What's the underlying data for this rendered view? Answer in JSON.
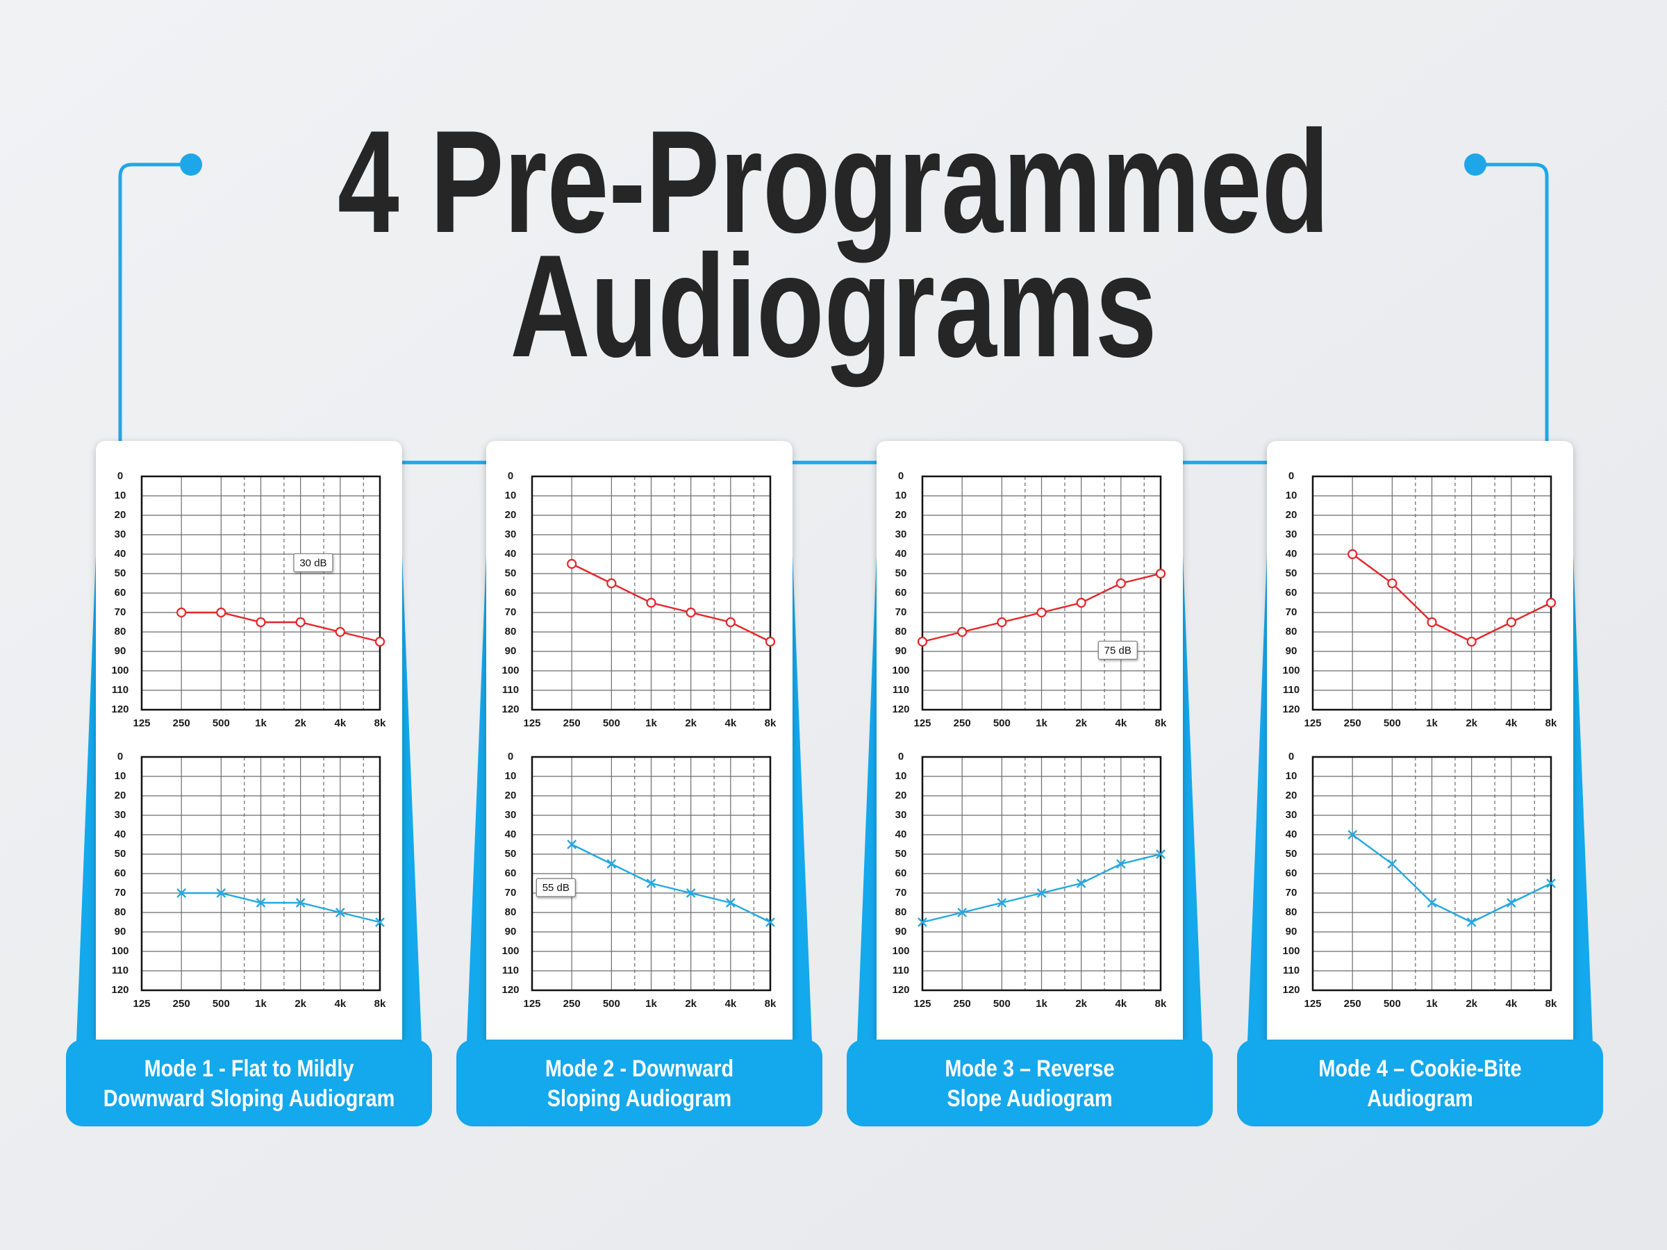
{
  "header": {
    "title_lines": [
      "4 Pre-Programmed",
      "Audiograms"
    ]
  },
  "panels": [
    {
      "caption_lines": [
        "Mode 1 - Flat to Mildly",
        "Downward Sloping Audiogram"
      ]
    },
    {
      "caption_lines": [
        "Mode 2 - Downward",
        "Sloping Audiogram"
      ]
    },
    {
      "caption_lines": [
        "Mode 3 – Reverse",
        "Slope Audiogram"
      ]
    },
    {
      "caption_lines": [
        "Mode 4 – Cookie-Bite",
        "Audiogram"
      ]
    }
  ],
  "chart_data": [
    {
      "type": "line",
      "categories": [
        "125",
        "250",
        "500",
        "1k",
        "2k",
        "4k",
        "8k"
      ],
      "values": [
        null,
        70,
        70,
        75,
        75,
        80,
        85
      ],
      "color": "#e5262b",
      "marker": "circle",
      "ylim": [
        0,
        120
      ],
      "yticks": [
        0,
        10,
        20,
        30,
        40,
        50,
        60,
        70,
        80,
        90,
        100,
        110,
        120
      ],
      "y_inverted": true,
      "grid": true,
      "annotation": "30 dB"
    },
    {
      "type": "line",
      "categories": [
        "125",
        "250",
        "500",
        "1k",
        "2k",
        "4k",
        "8k"
      ],
      "values": [
        null,
        70,
        70,
        75,
        75,
        80,
        85
      ],
      "color": "#24a9e1",
      "marker": "x",
      "ylim": [
        0,
        120
      ],
      "yticks": [
        0,
        10,
        20,
        30,
        40,
        50,
        60,
        70,
        80,
        90,
        100,
        110,
        120
      ],
      "y_inverted": true,
      "grid": true
    },
    {
      "type": "line",
      "categories": [
        "125",
        "250",
        "500",
        "1k",
        "2k",
        "4k",
        "8k"
      ],
      "values": [
        null,
        45,
        55,
        65,
        70,
        75,
        85
      ],
      "color": "#e5262b",
      "marker": "circle",
      "ylim": [
        0,
        120
      ],
      "yticks": [
        0,
        10,
        20,
        30,
        40,
        50,
        60,
        70,
        80,
        90,
        100,
        110,
        120
      ],
      "y_inverted": true,
      "grid": true
    },
    {
      "type": "line",
      "categories": [
        "125",
        "250",
        "500",
        "1k",
        "2k",
        "4k",
        "8k"
      ],
      "values": [
        null,
        45,
        55,
        65,
        70,
        75,
        85
      ],
      "color": "#24a9e1",
      "marker": "x",
      "ylim": [
        0,
        120
      ],
      "yticks": [
        0,
        10,
        20,
        30,
        40,
        50,
        60,
        70,
        80,
        90,
        100,
        110,
        120
      ],
      "y_inverted": true,
      "grid": true,
      "annotation": "55 dB"
    },
    {
      "type": "line",
      "categories": [
        "125",
        "250",
        "500",
        "1k",
        "2k",
        "4k",
        "8k"
      ],
      "values": [
        85,
        80,
        75,
        70,
        65,
        55,
        50
      ],
      "color": "#e5262b",
      "marker": "circle",
      "ylim": [
        0,
        120
      ],
      "yticks": [
        0,
        10,
        20,
        30,
        40,
        50,
        60,
        70,
        80,
        90,
        100,
        110,
        120
      ],
      "y_inverted": true,
      "grid": true,
      "annotation": "75 dB"
    },
    {
      "type": "line",
      "categories": [
        "125",
        "250",
        "500",
        "1k",
        "2k",
        "4k",
        "8k"
      ],
      "values": [
        85,
        80,
        75,
        70,
        65,
        55,
        50
      ],
      "color": "#24a9e1",
      "marker": "x",
      "ylim": [
        0,
        120
      ],
      "yticks": [
        0,
        10,
        20,
        30,
        40,
        50,
        60,
        70,
        80,
        90,
        100,
        110,
        120
      ],
      "y_inverted": true,
      "grid": true
    },
    {
      "type": "line",
      "categories": [
        "125",
        "250",
        "500",
        "1k",
        "2k",
        "4k",
        "8k"
      ],
      "values": [
        null,
        40,
        55,
        75,
        85,
        75,
        65
      ],
      "color": "#e5262b",
      "marker": "circle",
      "ylim": [
        0,
        120
      ],
      "yticks": [
        0,
        10,
        20,
        30,
        40,
        50,
        60,
        70,
        80,
        90,
        100,
        110,
        120
      ],
      "y_inverted": true,
      "grid": true
    },
    {
      "type": "line",
      "categories": [
        "125",
        "250",
        "500",
        "1k",
        "2k",
        "4k",
        "8k"
      ],
      "values": [
        null,
        40,
        55,
        75,
        85,
        75,
        65
      ],
      "color": "#24a9e1",
      "marker": "x",
      "ylim": [
        0,
        120
      ],
      "yticks": [
        0,
        10,
        20,
        30,
        40,
        50,
        60,
        70,
        80,
        90,
        100,
        110,
        120
      ],
      "y_inverted": true,
      "grid": true
    }
  ]
}
